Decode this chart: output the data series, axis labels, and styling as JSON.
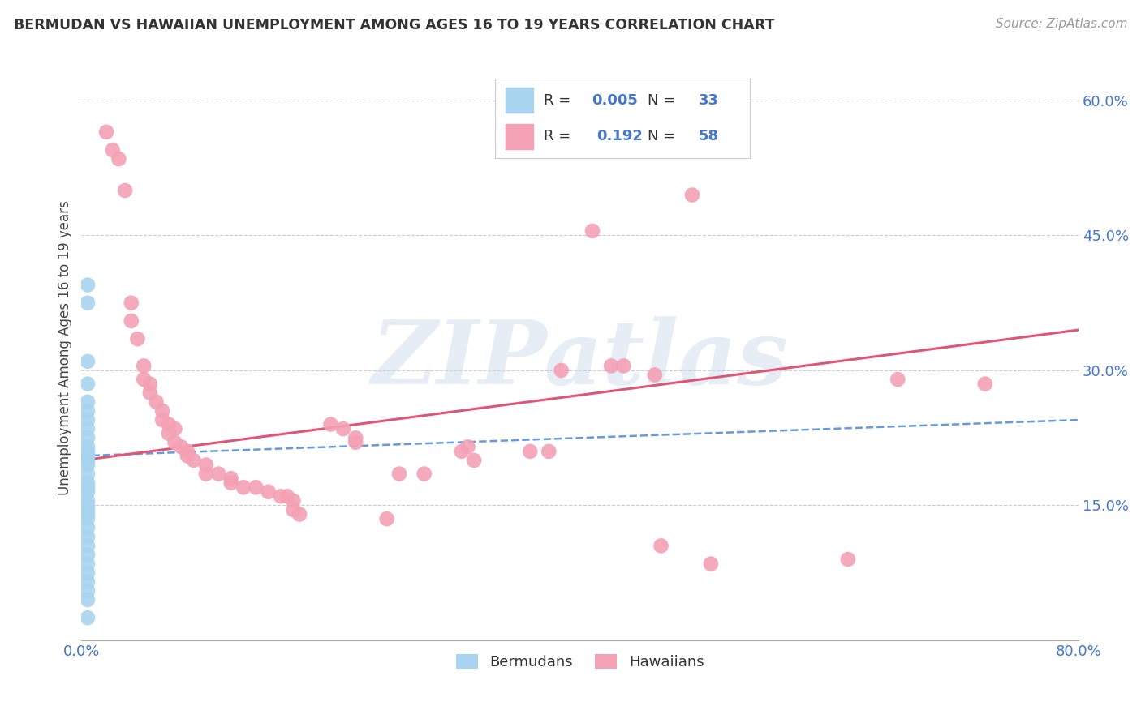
{
  "title": "BERMUDAN VS HAWAIIAN UNEMPLOYMENT AMONG AGES 16 TO 19 YEARS CORRELATION CHART",
  "source_text": "Source: ZipAtlas.com",
  "ylabel": "Unemployment Among Ages 16 to 19 years",
  "xlim": [
    0.0,
    0.8
  ],
  "ylim": [
    0.0,
    0.65
  ],
  "xticks": [
    0.0,
    0.1,
    0.2,
    0.3,
    0.4,
    0.5,
    0.6,
    0.7,
    0.8
  ],
  "ytick_positions": [
    0.15,
    0.3,
    0.45,
    0.6
  ],
  "ytick_labels": [
    "15.0%",
    "30.0%",
    "45.0%",
    "60.0%"
  ],
  "grid_color": "#cccccc",
  "background_color": "#ffffff",
  "watermark_text": "ZIPatlas",
  "legend_R_bermudan": "0.005",
  "legend_N_bermudan": "33",
  "legend_R_hawaiian": "0.192",
  "legend_N_hawaiian": "58",
  "bermudan_color": "#a8d4f0",
  "hawaiian_color": "#f4a0b5",
  "bermudan_scatter": [
    [
      0.005,
      0.395
    ],
    [
      0.005,
      0.375
    ],
    [
      0.005,
      0.31
    ],
    [
      0.005,
      0.285
    ],
    [
      0.005,
      0.265
    ],
    [
      0.005,
      0.255
    ],
    [
      0.005,
      0.245
    ],
    [
      0.005,
      0.235
    ],
    [
      0.005,
      0.225
    ],
    [
      0.005,
      0.215
    ],
    [
      0.005,
      0.21
    ],
    [
      0.005,
      0.205
    ],
    [
      0.005,
      0.2
    ],
    [
      0.005,
      0.195
    ],
    [
      0.005,
      0.185
    ],
    [
      0.005,
      0.175
    ],
    [
      0.005,
      0.17
    ],
    [
      0.005,
      0.165
    ],
    [
      0.005,
      0.155
    ],
    [
      0.005,
      0.15
    ],
    [
      0.005,
      0.145
    ],
    [
      0.005,
      0.14
    ],
    [
      0.005,
      0.135
    ],
    [
      0.005,
      0.125
    ],
    [
      0.005,
      0.115
    ],
    [
      0.005,
      0.105
    ],
    [
      0.005,
      0.095
    ],
    [
      0.005,
      0.085
    ],
    [
      0.005,
      0.075
    ],
    [
      0.005,
      0.065
    ],
    [
      0.005,
      0.055
    ],
    [
      0.005,
      0.045
    ],
    [
      0.005,
      0.025
    ]
  ],
  "hawaiian_scatter": [
    [
      0.02,
      0.565
    ],
    [
      0.025,
      0.545
    ],
    [
      0.03,
      0.535
    ],
    [
      0.035,
      0.5
    ],
    [
      0.04,
      0.375
    ],
    [
      0.04,
      0.355
    ],
    [
      0.045,
      0.335
    ],
    [
      0.05,
      0.305
    ],
    [
      0.05,
      0.29
    ],
    [
      0.055,
      0.285
    ],
    [
      0.055,
      0.275
    ],
    [
      0.06,
      0.265
    ],
    [
      0.065,
      0.255
    ],
    [
      0.065,
      0.245
    ],
    [
      0.07,
      0.24
    ],
    [
      0.075,
      0.235
    ],
    [
      0.07,
      0.23
    ],
    [
      0.075,
      0.22
    ],
    [
      0.08,
      0.215
    ],
    [
      0.085,
      0.21
    ],
    [
      0.085,
      0.205
    ],
    [
      0.09,
      0.2
    ],
    [
      0.1,
      0.195
    ],
    [
      0.1,
      0.185
    ],
    [
      0.11,
      0.185
    ],
    [
      0.12,
      0.18
    ],
    [
      0.12,
      0.175
    ],
    [
      0.13,
      0.17
    ],
    [
      0.14,
      0.17
    ],
    [
      0.15,
      0.165
    ],
    [
      0.16,
      0.16
    ],
    [
      0.165,
      0.16
    ],
    [
      0.17,
      0.155
    ],
    [
      0.17,
      0.145
    ],
    [
      0.175,
      0.14
    ],
    [
      0.2,
      0.24
    ],
    [
      0.21,
      0.235
    ],
    [
      0.22,
      0.225
    ],
    [
      0.22,
      0.22
    ],
    [
      0.245,
      0.135
    ],
    [
      0.255,
      0.185
    ],
    [
      0.275,
      0.185
    ],
    [
      0.305,
      0.21
    ],
    [
      0.31,
      0.215
    ],
    [
      0.315,
      0.2
    ],
    [
      0.36,
      0.21
    ],
    [
      0.375,
      0.21
    ],
    [
      0.385,
      0.3
    ],
    [
      0.41,
      0.455
    ],
    [
      0.425,
      0.305
    ],
    [
      0.435,
      0.305
    ],
    [
      0.46,
      0.295
    ],
    [
      0.465,
      0.105
    ],
    [
      0.49,
      0.495
    ],
    [
      0.505,
      0.085
    ],
    [
      0.615,
      0.09
    ],
    [
      0.655,
      0.29
    ],
    [
      0.725,
      0.285
    ]
  ],
  "bermudan_trend_x": [
    0.0,
    0.8
  ],
  "bermudan_trend_y": [
    0.205,
    0.245
  ],
  "hawaiian_trend_x": [
    0.0,
    0.8
  ],
  "hawaiian_trend_y": [
    0.2,
    0.345
  ]
}
